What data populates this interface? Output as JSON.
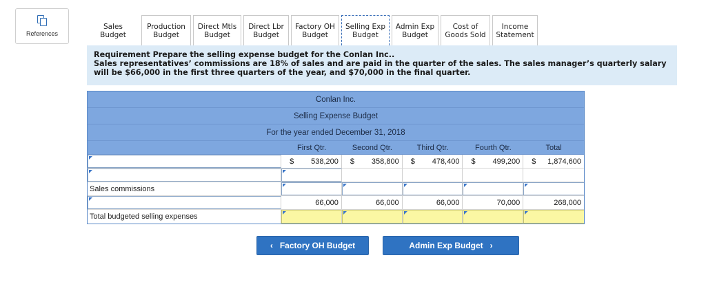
{
  "references": {
    "label": "References"
  },
  "tabs": [
    {
      "label": "Sales Budget",
      "style": "plain"
    },
    {
      "label": "Production\nBudget",
      "style": "normal"
    },
    {
      "label": "Direct Mtls\nBudget",
      "style": "normal"
    },
    {
      "label": "Direct Lbr\nBudget",
      "style": "normal"
    },
    {
      "label": "Factory OH\nBudget",
      "style": "normal"
    },
    {
      "label": "Selling Exp\nBudget",
      "style": "active"
    },
    {
      "label": "Admin Exp\nBudget",
      "style": "normal"
    },
    {
      "label": "Cost of\nGoods Sold",
      "style": "normal"
    },
    {
      "label": "Income\nStatement",
      "style": "normal"
    }
  ],
  "requirement": {
    "line1": "Requirement  Prepare the selling expense budget for the Conlan Inc..",
    "line2": "Sales representatives’ commissions are 18% of sales and are paid in the quarter of the sales. The sales manager’s quarterly salary will be $66,000 in the first three quarters of the year, and $70,000 in the final quarter."
  },
  "table": {
    "company": "Conlan Inc.",
    "title": "Selling Expense Budget",
    "period": "For the year ended December 31, 2018",
    "columns": [
      "First Qtr.",
      "Second Qtr.",
      "Third Qtr.",
      "Fourth Qtr.",
      "Total"
    ],
    "sales_row": {
      "symbols": [
        "$",
        "$",
        "$",
        "$",
        "$"
      ],
      "values": [
        "538,200",
        "358,800",
        "478,400",
        "499,200",
        "1,874,600"
      ]
    },
    "label_commissions": "Sales commissions",
    "salary_row": {
      "values": [
        "66,000",
        "66,000",
        "66,000",
        "70,000",
        "268,000"
      ]
    },
    "label_total": "Total budgeted selling expenses"
  },
  "nav": {
    "prev_label": "Factory OH Budget",
    "next_label": "Admin Exp Budget",
    "prev_icon": "chevron-left-icon",
    "next_icon": "chevron-right-icon"
  }
}
